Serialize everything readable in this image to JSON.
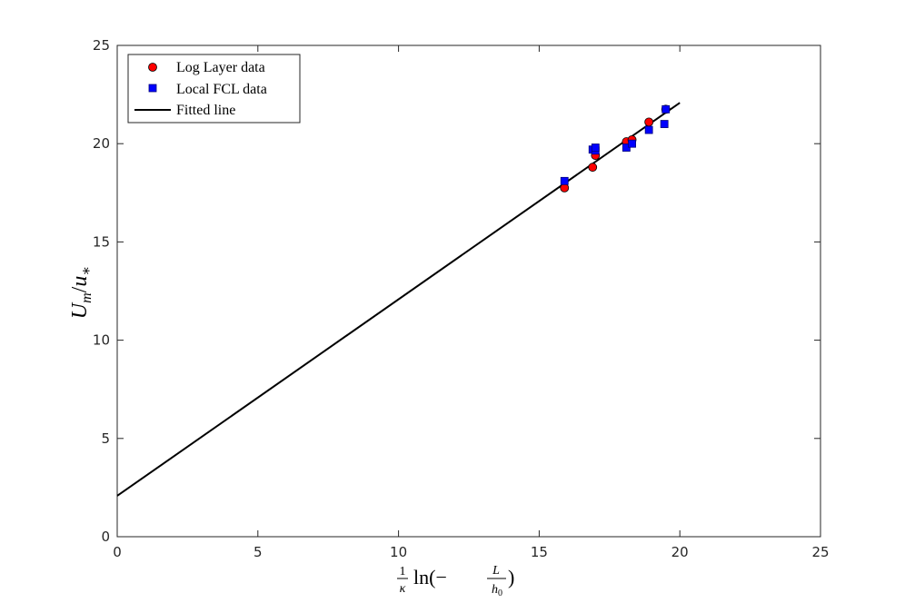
{
  "chart_data": {
    "type": "scatter",
    "xlim": [
      0,
      25
    ],
    "ylim": [
      0,
      25
    ],
    "x_ticks": [
      "0",
      "5",
      "10",
      "15",
      "20",
      "25"
    ],
    "y_ticks": [
      "0",
      "5",
      "10",
      "15",
      "20",
      "25"
    ],
    "xlabel": {
      "frac_num": "1",
      "frac_den": "κ",
      "func": "ln(−",
      "inner_frac_num": "L",
      "inner_frac_den": "h",
      "inner_frac_den_sub": "0",
      "close": ")"
    },
    "ylabel": {
      "u_big": "U",
      "u_big_sub": "m",
      "slash": "/",
      "u_small": "u",
      "u_small_sub": "∗"
    },
    "grid": false,
    "box": true,
    "legend_position": "top-left",
    "series": [
      {
        "name": "Log Layer data",
        "marker": "circle",
        "color": "#ff0000",
        "x": [
          15.9,
          16.9,
          17.0,
          18.1,
          18.3,
          18.9,
          19.5
        ],
        "y": [
          17.75,
          18.8,
          19.4,
          20.1,
          20.2,
          21.1,
          21.75
        ]
      },
      {
        "name": "Local FCL data",
        "marker": "square",
        "color": "#0000ff",
        "x": [
          15.9,
          16.9,
          17.0,
          17.0,
          18.1,
          18.3,
          18.9,
          19.45,
          19.5
        ],
        "y": [
          18.1,
          19.7,
          19.65,
          19.8,
          19.8,
          20.0,
          20.7,
          21.0,
          21.75
        ]
      },
      {
        "name": "Fitted line",
        "marker": "line",
        "color": "#000000",
        "x": [
          0,
          20
        ],
        "y": [
          2.08,
          22.08
        ]
      }
    ]
  }
}
